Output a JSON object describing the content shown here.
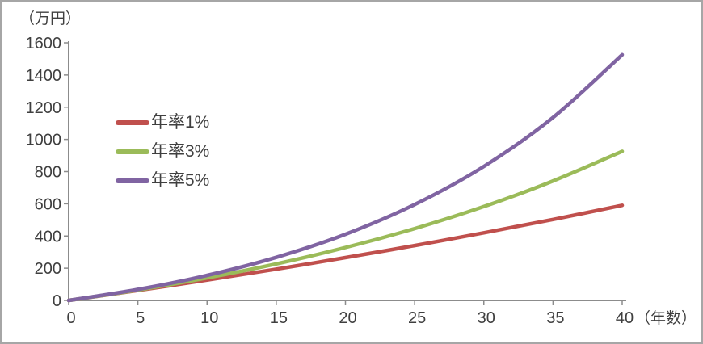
{
  "chart_data": {
    "type": "line",
    "title": "",
    "xlabel": "（年数）",
    "ylabel": "（万円）",
    "x": [
      0,
      5,
      10,
      15,
      20,
      25,
      30,
      35,
      40
    ],
    "series": [
      {
        "name": "年率1%",
        "color": "#c0504d",
        "values": [
          0,
          61.5,
          126.2,
          194.1,
          265.6,
          340.7,
          419.7,
          502.6,
          590.1
        ]
      },
      {
        "name": "年率3%",
        "color": "#9bbb59",
        "values": [
          0,
          64.6,
          139.7,
          226.9,
          328.3,
          446.0,
          582.7,
          741.6,
          926.1
        ]
      },
      {
        "name": "年率5%",
        "color": "#8064a2",
        "values": [
          0,
          68.0,
          155.3,
          267.3,
          411.0,
          595.5,
          832.3,
          1136.0,
          1526.0
        ]
      }
    ],
    "xlim": [
      0,
      40
    ],
    "ylim": [
      0,
      1600
    ],
    "x_ticks": [
      0,
      5,
      10,
      15,
      20,
      25,
      30,
      35,
      40
    ],
    "y_ticks": [
      0,
      200,
      400,
      600,
      800,
      1000,
      1200,
      1400,
      1600
    ],
    "grid": false,
    "legend_position": "upper-left-inside",
    "axis_color": "#8c8c8c",
    "text_color": "#3f3f3f",
    "line_width": 4.5
  }
}
